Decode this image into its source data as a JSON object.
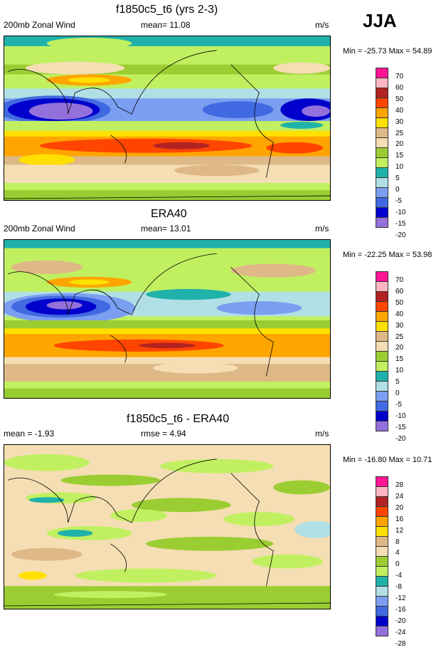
{
  "season": "JJA",
  "panels": [
    {
      "title": "f1850c5_t6 (yrs 2-3)",
      "left": "200mb Zonal Wind",
      "center": "mean=  11.08",
      "units": "m/s",
      "minmax": "Min = -25.73 Max =  54.89",
      "levels": [
        "70",
        "60",
        "50",
        "40",
        "30",
        "25",
        "20",
        "15",
        "10",
        "5",
        "0",
        "-5",
        "-10",
        "-15",
        "-20"
      ]
    },
    {
      "title": "ERA40",
      "left": "200mb Zonal Wind",
      "center": "mean=  13.01",
      "units": "m/s",
      "minmax": "Min = -22.25 Max =  53.98",
      "levels": [
        "70",
        "60",
        "50",
        "40",
        "30",
        "25",
        "20",
        "15",
        "10",
        "5",
        "0",
        "-5",
        "-10",
        "-15",
        "-20"
      ]
    },
    {
      "title": "f1850c5_t6 - ERA40",
      "left": "mean =  -1.93",
      "center": "rmse =   4.94",
      "units": "m/s",
      "minmax": "Min = -16.80 Max =  10.71",
      "levels": [
        "28",
        "24",
        "20",
        "16",
        "12",
        "8",
        "4",
        "0",
        "-4",
        "-8",
        "-12",
        "-16",
        "-20",
        "-24",
        "-28"
      ]
    }
  ],
  "colors": [
    "#ff1493",
    "#ffb6c1",
    "#b22222",
    "#ff4500",
    "#ffa500",
    "#ffe000",
    "#deb887",
    "#f5deb3",
    "#9acd32",
    "#c0f060",
    "#20b2aa",
    "#b0e0e6",
    "#7b9ef0",
    "#4169e1",
    "#0000cd",
    "#9370db"
  ]
}
